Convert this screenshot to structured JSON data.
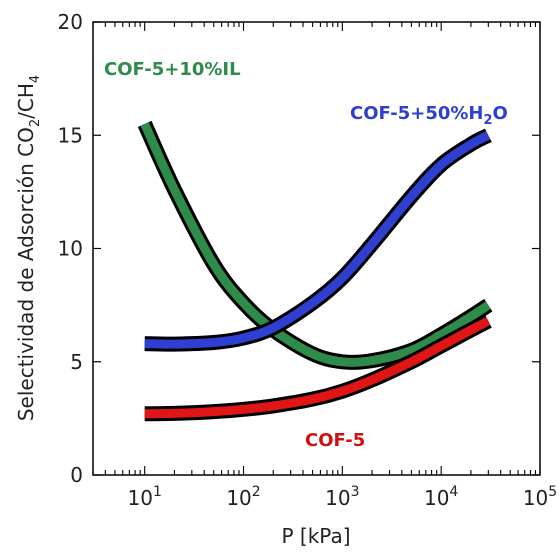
{
  "chart_data": {
    "type": "line",
    "title": "",
    "xlabel": "P [kPa]",
    "ylabel": {
      "text": "Selectividad de Adsorción CO",
      "sub1": "2",
      "mid": "/CH",
      "sub2": "4"
    },
    "xscale": "log",
    "xlim": [
      3,
      100000
    ],
    "ylim": [
      0,
      20
    ],
    "x_ticks": [
      {
        "value": 10,
        "base": "10",
        "exp": "1"
      },
      {
        "value": 100,
        "base": "10",
        "exp": "2"
      },
      {
        "value": 1000,
        "base": "10",
        "exp": "3"
      },
      {
        "value": 10000,
        "base": "10",
        "exp": "4"
      },
      {
        "value": 100000,
        "base": "10",
        "exp": "5"
      }
    ],
    "y_ticks": [
      {
        "value": 0,
        "label": "0"
      },
      {
        "value": 5,
        "label": "5"
      },
      {
        "value": 10,
        "label": "10"
      },
      {
        "value": 15,
        "label": "15"
      },
      {
        "value": 20,
        "label": "20"
      }
    ],
    "grid": false,
    "series": [
      {
        "name": "COF-5+10%IL",
        "color": "#2e8b4a",
        "x": [
          10,
          20,
          50,
          100,
          200,
          500,
          1000,
          2000,
          5000,
          10000,
          20000,
          30000
        ],
        "y": [
          15.5,
          12.6,
          9.3,
          7.6,
          6.4,
          5.35,
          5.0,
          5.05,
          5.5,
          6.2,
          7.0,
          7.5
        ]
      },
      {
        "name": "COF-5+50%H",
        "label_sub": "2",
        "label_suffix": "O",
        "color": "#2f3fd0",
        "x": [
          10,
          20,
          50,
          100,
          200,
          500,
          1000,
          2000,
          5000,
          10000,
          20000,
          30000
        ],
        "y": [
          5.8,
          5.78,
          5.85,
          6.05,
          6.5,
          7.6,
          8.7,
          10.2,
          12.3,
          13.7,
          14.6,
          15.0
        ]
      },
      {
        "name": "COF-5",
        "color": "#e01515",
        "x": [
          10,
          20,
          50,
          100,
          200,
          500,
          1000,
          2000,
          5000,
          10000,
          20000,
          30000
        ],
        "y": [
          2.7,
          2.72,
          2.8,
          2.9,
          3.05,
          3.35,
          3.7,
          4.2,
          5.0,
          5.7,
          6.4,
          6.8
        ]
      }
    ]
  }
}
